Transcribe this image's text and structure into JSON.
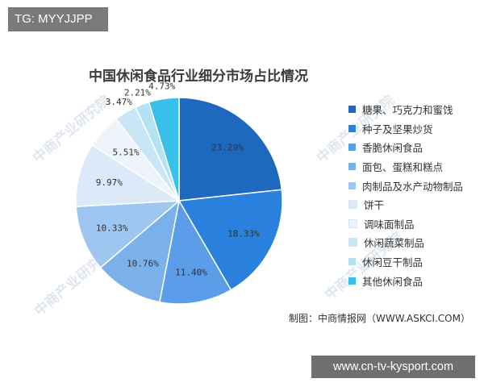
{
  "badge_top": "TG: MYYJJPP",
  "badge_bottom": "www.cn-tv-kysport.com",
  "watermark_text": "中商产业研究院",
  "source_text": "制图：中商情报网（WWW.ASKCI.COM）",
  "chart_data": {
    "type": "pie",
    "title": "中国休闲食品行业细分市场占比情况",
    "categories": [
      "糖果、巧克力和蜜饯",
      "种子及坚果炒货",
      "香脆休闲食品",
      "面包、蛋糕和糕点",
      "肉制品及水产动物制品",
      "饼干",
      "调味面制品",
      "休闲蔬菜制品",
      "休闲豆干制品",
      "其他休闲食品"
    ],
    "values": [
      23.29,
      18.33,
      11.4,
      10.76,
      10.33,
      9.97,
      5.51,
      3.47,
      2.21,
      4.73
    ],
    "labels": [
      "23.29%",
      "18.33%",
      "11.40%",
      "10.76%",
      "10.33%",
      "9.97%",
      "5.51%",
      "3.47%",
      "2.21%",
      "4.73%"
    ],
    "colors": [
      "#1f68c0",
      "#2a80dd",
      "#5b9de8",
      "#7bb1ea",
      "#9ec6f1",
      "#dbe9f8",
      "#eef4fb",
      "#c9e6f7",
      "#b3e2f3",
      "#38bfea"
    ],
    "legend_position": "right"
  }
}
